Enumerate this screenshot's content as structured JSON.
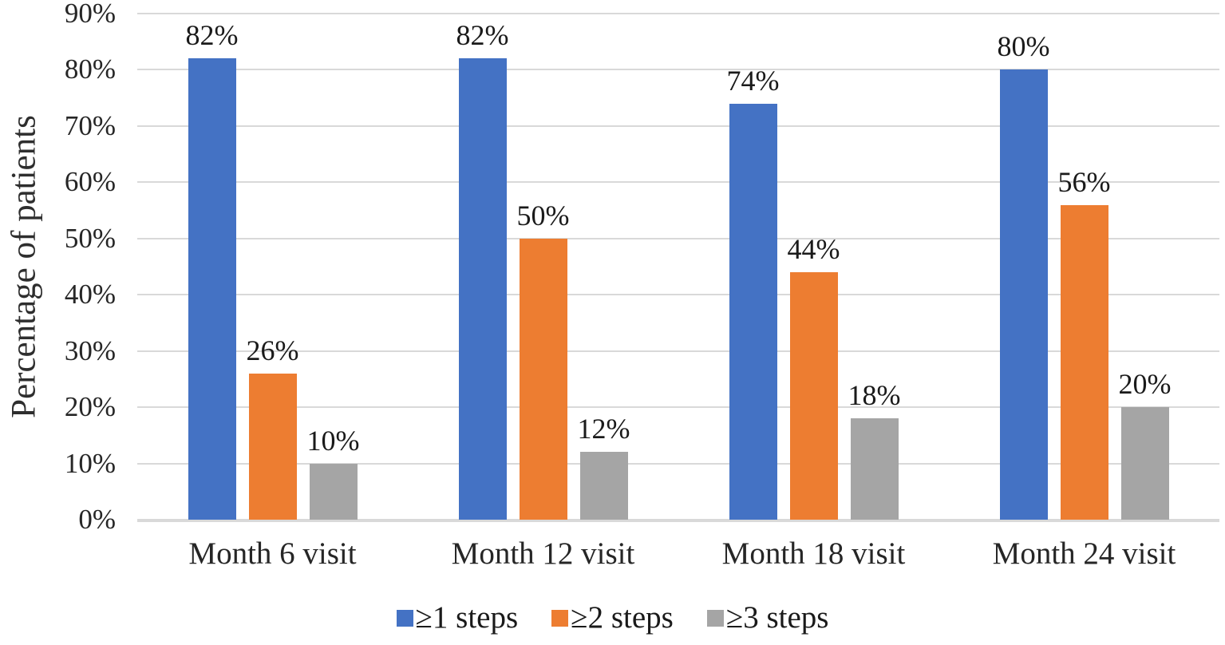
{
  "chart_data": {
    "type": "bar",
    "ylabel": "Percentage of patients",
    "xlabel": "",
    "categories": [
      "Month 6 visit",
      "Month 12 visit",
      "Month 18 visit",
      "Month 24 visit"
    ],
    "series": [
      {
        "name": "≥1 steps",
        "color": "#4472C4",
        "values": [
          82,
          82,
          74,
          80
        ]
      },
      {
        "name": "≥2 steps",
        "color": "#ED7D31",
        "values": [
          26,
          50,
          44,
          56
        ]
      },
      {
        "name": "≥3 steps",
        "color": "#A5A5A5",
        "values": [
          10,
          12,
          18,
          20
        ]
      }
    ],
    "data_labels": [
      [
        "82%",
        "82%",
        "74%",
        "80%"
      ],
      [
        "26%",
        "50%",
        "44%",
        "56%"
      ],
      [
        "10%",
        "12%",
        "18%",
        "20%"
      ]
    ],
    "ylim": [
      0,
      90
    ],
    "y_tick_step": 10,
    "y_tick_labels": [
      "0%",
      "10%",
      "20%",
      "30%",
      "40%",
      "50%",
      "60%",
      "70%",
      "80%",
      "90%"
    ],
    "grid": true,
    "gridline_color": "#D9D9D9",
    "axis_line_color": "#D9D9D9",
    "legend_position": "bottom"
  }
}
